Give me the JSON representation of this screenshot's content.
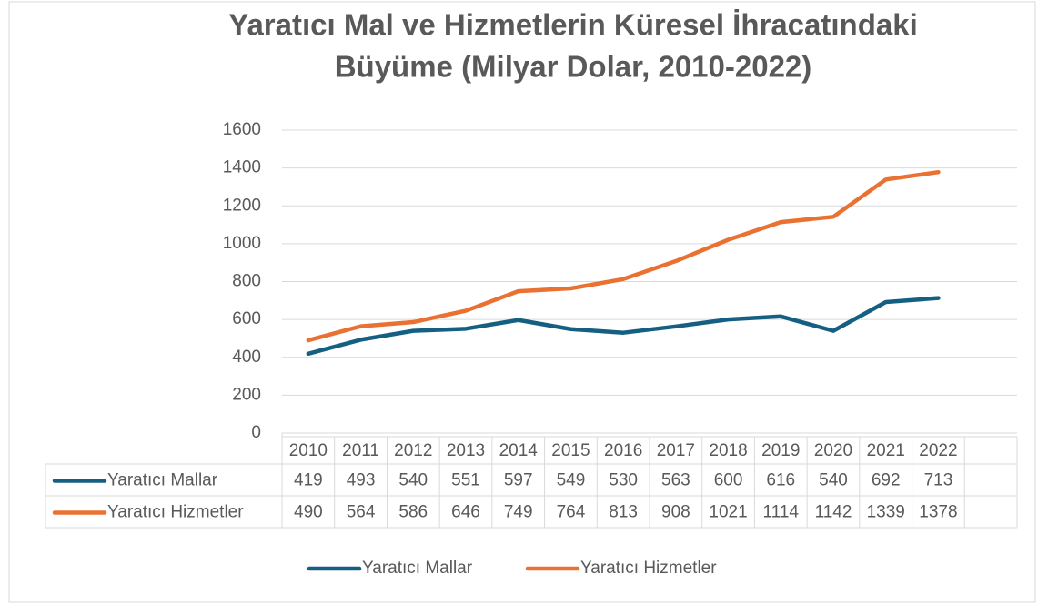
{
  "chart_data": {
    "type": "line",
    "title": [
      "Yaratıcı Mal ve Hizmetlerin Küresel İhracatındaki",
      "Büyüme (Milyar Dolar, 2010-2022)"
    ],
    "categories": [
      "2010",
      "2011",
      "2012",
      "2013",
      "2014",
      "2015",
      "2016",
      "2017",
      "2018",
      "2019",
      "2020",
      "2021",
      "2022"
    ],
    "series": [
      {
        "name": "Yaratıcı Mallar",
        "color": "#156082",
        "values": [
          419,
          493,
          540,
          551,
          597,
          549,
          530,
          563,
          600,
          616,
          540,
          692,
          713
        ]
      },
      {
        "name": "Yaratıcı Hizmetler",
        "color": "#e97132",
        "values": [
          490,
          564,
          586,
          646,
          749,
          764,
          813,
          908,
          1021,
          1114,
          1142,
          1339,
          1378
        ]
      }
    ],
    "ylim": [
      0,
      1600
    ],
    "yticks": [
      0,
      200,
      400,
      600,
      800,
      1000,
      1200,
      1400,
      1600
    ],
    "grid": true,
    "legend": "bottom"
  }
}
